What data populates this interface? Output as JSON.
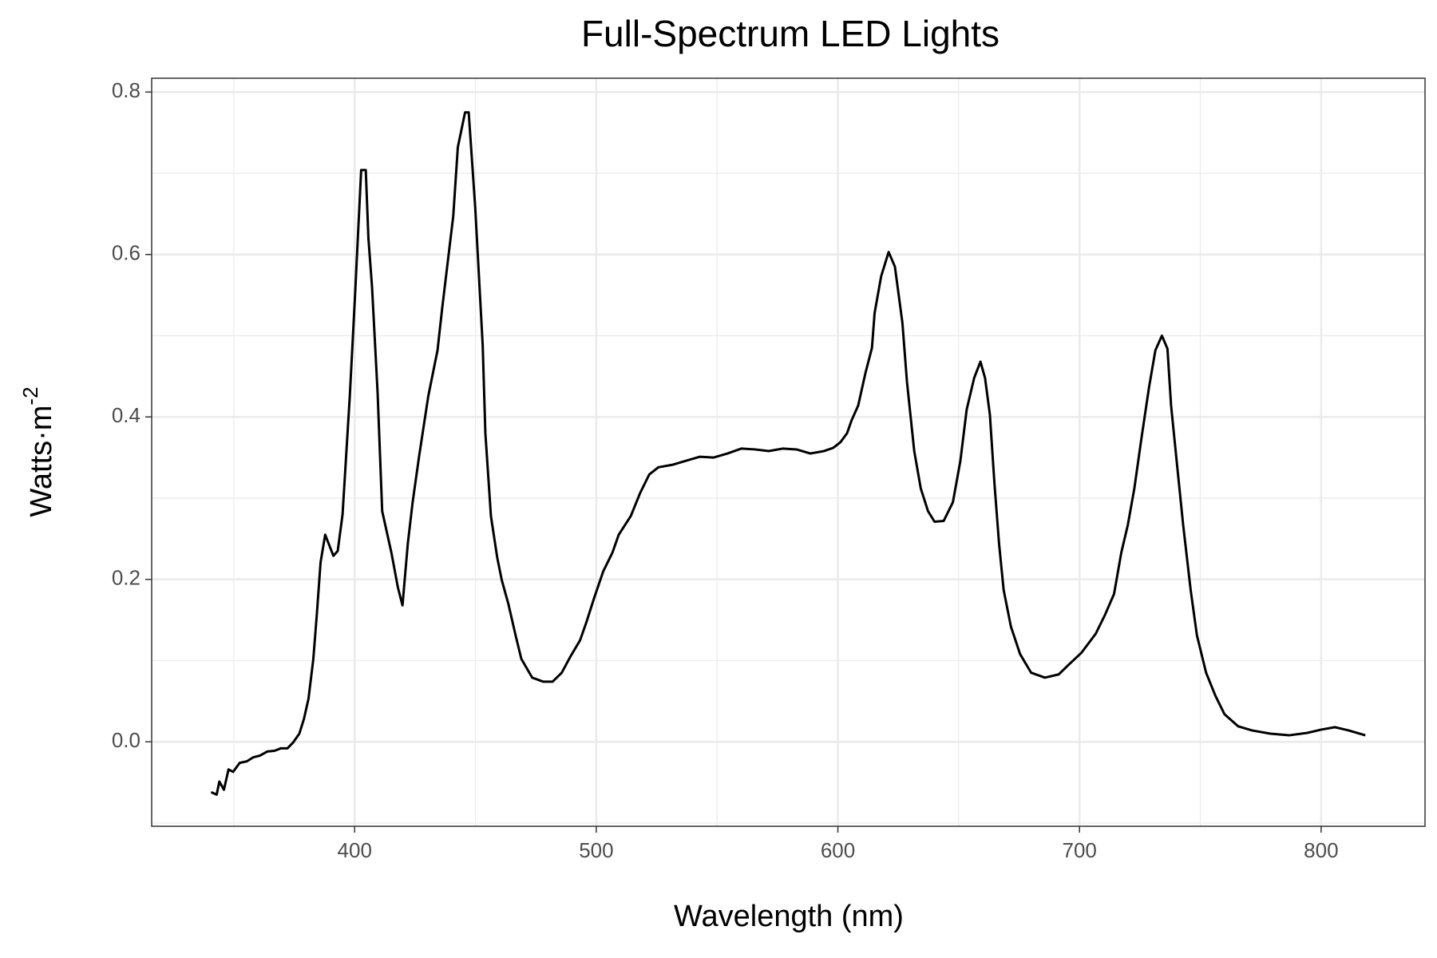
{
  "chart_data": {
    "type": "line",
    "title": "Full-Spectrum LED Lights",
    "x_label": "Wavelength (nm)",
    "y_label": "Watts·m",
    "y_label_sup": "-2",
    "color": "#000000",
    "grid": true,
    "xlim": [
      316,
      843
    ],
    "ylim": [
      -0.104,
      0.817
    ],
    "xticks": [
      400,
      500,
      600,
      700,
      800
    ],
    "xminor": [
      350,
      450,
      550,
      650,
      750
    ],
    "yticks": [
      {
        "value": 0,
        "label": "0.0"
      },
      0.2,
      0.4,
      0.6,
      0.8
    ],
    "yminor": [
      -0.1,
      0.1,
      0.3,
      0.5,
      0.7
    ],
    "x": [
      340.6,
      342.9,
      344.0,
      345.9,
      347.8,
      349.7,
      352.4,
      355.4,
      358.1,
      360.8,
      363.8,
      366.9,
      369.5,
      372.2,
      374.5,
      377.1,
      379.0,
      380.9,
      382.9,
      384.4,
      385.9,
      387.8,
      391.2,
      393.0,
      395.0,
      398.0,
      400.0,
      402.7,
      404.6,
      405.7,
      407.2,
      409.5,
      411.4,
      415.2,
      417.9,
      419.8,
      422.0,
      424.0,
      426.7,
      430.5,
      434.3,
      436.2,
      438.9,
      440.8,
      442.7,
      445.7,
      447.2,
      449.9,
      453.0,
      454.1,
      456.4,
      459.0,
      460.9,
      463.6,
      466.7,
      469.0,
      473.5,
      478.1,
      481.9,
      485.7,
      489.5,
      493.3,
      496.0,
      499.0,
      502.9,
      506.7,
      509.3,
      514.3,
      518.1,
      521.9,
      525.7,
      531.4,
      537.1,
      542.9,
      548.6,
      554.3,
      560.0,
      565.7,
      571.4,
      577.1,
      582.9,
      588.6,
      594.3,
      598.1,
      601.1,
      603.8,
      605.7,
      608.4,
      611.4,
      614.1,
      615.2,
      617.9,
      621.0,
      623.6,
      626.7,
      628.6,
      631.6,
      634.3,
      637.3,
      640.0,
      643.8,
      647.6,
      650.7,
      653.3,
      656.4,
      659.0,
      660.9,
      662.9,
      664.8,
      666.7,
      668.6,
      671.6,
      675.4,
      680.0,
      685.7,
      691.4,
      695.2,
      700.9,
      706.7,
      710.5,
      714.3,
      717.3,
      720.0,
      722.7,
      725.7,
      728.8,
      731.4,
      734.1,
      736.4,
      737.9,
      740.2,
      742.9,
      746.0,
      748.6,
      752.4,
      756.2,
      760.0,
      765.7,
      771.4,
      779.0,
      786.7,
      794.3,
      800.0,
      805.7,
      811.4,
      818.3
    ],
    "values": [
      -0.062,
      -0.065,
      -0.049,
      -0.059,
      -0.034,
      -0.037,
      -0.026,
      -0.024,
      -0.019,
      -0.017,
      -0.012,
      -0.011,
      -0.008,
      -0.008,
      -0.001,
      0.01,
      0.028,
      0.053,
      0.102,
      0.159,
      0.221,
      0.255,
      0.229,
      0.235,
      0.28,
      0.426,
      0.54,
      0.704,
      0.704,
      0.62,
      0.56,
      0.43,
      0.284,
      0.233,
      0.19,
      0.168,
      0.244,
      0.295,
      0.352,
      0.426,
      0.482,
      0.533,
      0.6,
      0.647,
      0.732,
      0.775,
      0.775,
      0.658,
      0.488,
      0.38,
      0.278,
      0.227,
      0.199,
      0.17,
      0.13,
      0.102,
      0.079,
      0.074,
      0.074,
      0.085,
      0.106,
      0.125,
      0.148,
      0.176,
      0.21,
      0.233,
      0.255,
      0.278,
      0.306,
      0.329,
      0.338,
      0.341,
      0.346,
      0.351,
      0.35,
      0.355,
      0.361,
      0.36,
      0.358,
      0.361,
      0.36,
      0.355,
      0.358,
      0.362,
      0.369,
      0.38,
      0.396,
      0.414,
      0.454,
      0.485,
      0.528,
      0.573,
      0.603,
      0.585,
      0.516,
      0.443,
      0.358,
      0.312,
      0.284,
      0.271,
      0.272,
      0.295,
      0.346,
      0.409,
      0.448,
      0.468,
      0.448,
      0.403,
      0.318,
      0.244,
      0.187,
      0.142,
      0.108,
      0.085,
      0.079,
      0.083,
      0.094,
      0.11,
      0.133,
      0.156,
      0.182,
      0.233,
      0.267,
      0.312,
      0.375,
      0.437,
      0.482,
      0.5,
      0.484,
      0.414,
      0.346,
      0.267,
      0.187,
      0.131,
      0.085,
      0.057,
      0.034,
      0.019,
      0.014,
      0.01,
      0.008,
      0.011,
      0.015,
      0.018,
      0.014,
      0.008
    ]
  }
}
